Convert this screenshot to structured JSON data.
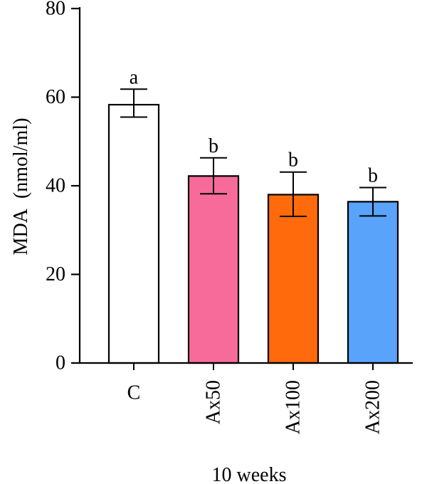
{
  "chart_data": {
    "type": "bar",
    "title": "",
    "xlabel": "10 weeks",
    "ylabel": "MDA  (nmol/ml)",
    "ylim": [
      0,
      80
    ],
    "yticks": [
      0,
      20,
      40,
      60,
      80
    ],
    "grid": false,
    "categories": [
      "C",
      "Ax50",
      "Ax100",
      "Ax200"
    ],
    "values": [
      58.3,
      42.2,
      38.0,
      36.4
    ],
    "error_high": [
      61.8,
      46.3,
      43.1,
      39.6
    ],
    "error_low": [
      55.5,
      38.2,
      33.1,
      33.2
    ],
    "labels": [
      "a",
      "b",
      "b",
      "b"
    ],
    "colors": [
      "#ffffff",
      "#f76b9b",
      "#ff6a0c",
      "#59a3fb"
    ]
  }
}
